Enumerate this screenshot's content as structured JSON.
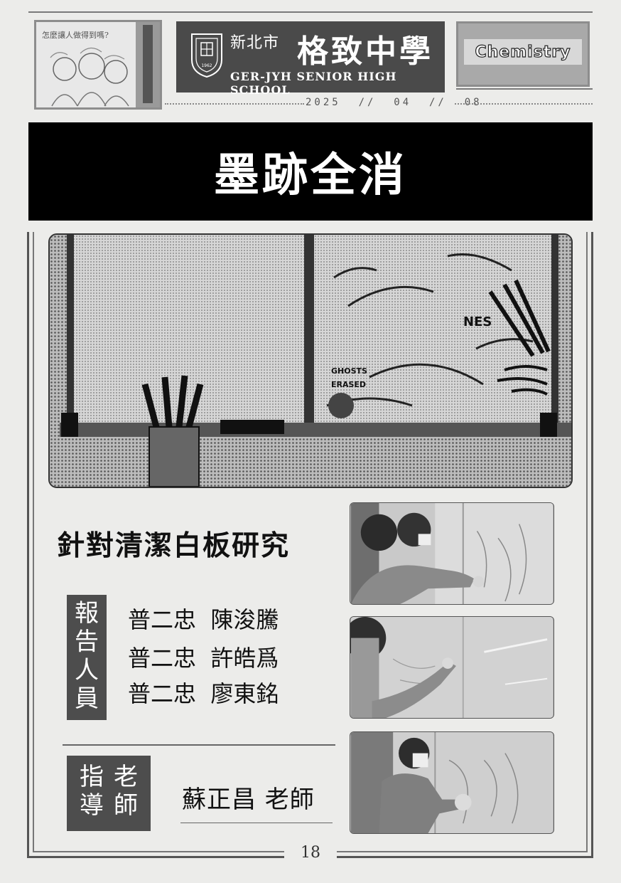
{
  "header": {
    "thumbnail_caption": "怎麼讓人做得到嗎?",
    "school_cn_small": "新北市",
    "school_cn_big": "格致中學",
    "school_en": "GER-JYH SENIOR HIGH SCHOOL",
    "crest_year": "1962",
    "subject": "Chemistry",
    "date": "2025  //  04  //  08"
  },
  "title": "墨跡全消",
  "illustration": {
    "text_ghosts_erased_1": "GHOSTS",
    "text_ghosts_erased_2": "ERASED",
    "text_nes": "NES"
  },
  "research_title": "針對清潔白板研究",
  "reporters": {
    "label": [
      "報",
      "告",
      "人",
      "員"
    ],
    "names": [
      "普二忠  陳浚騰",
      "普二忠  許皓爲",
      "普二忠  廖東銘"
    ]
  },
  "advisor": {
    "label_col1": [
      "指",
      "導"
    ],
    "label_col2": [
      "老",
      "師"
    ],
    "name": "蘇正昌  老師"
  },
  "page_number": "18"
}
